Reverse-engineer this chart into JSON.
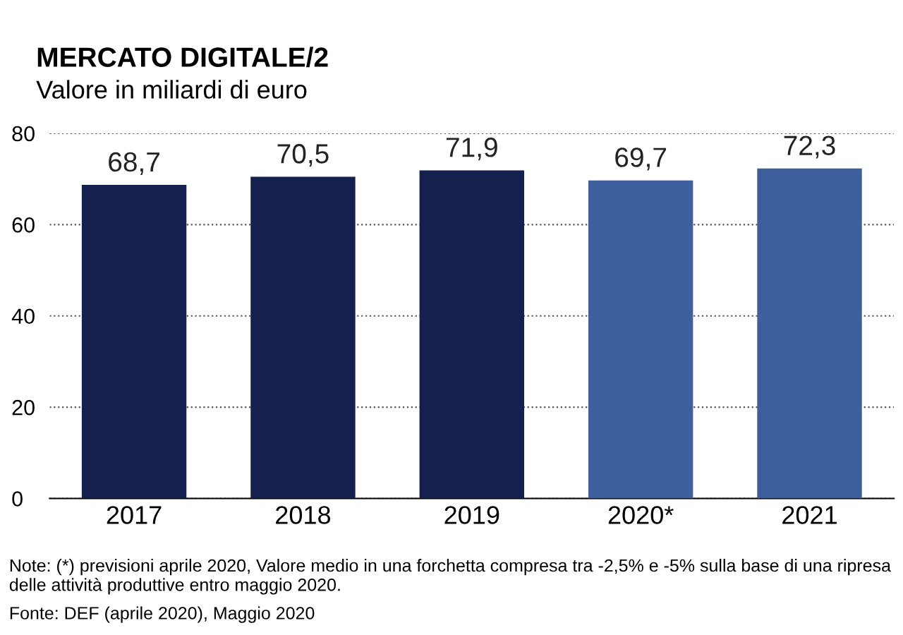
{
  "chart_data": {
    "type": "bar",
    "title": "MERCATO DIGITALE/2",
    "subtitle": "Valore in miliardi di euro",
    "categories": [
      "2017",
      "2018",
      "2019",
      "2020*",
      "2021"
    ],
    "values": [
      68.7,
      70.5,
      71.9,
      69.7,
      72.3
    ],
    "value_labels": [
      "68,7",
      "70,5",
      "71,9",
      "69,7",
      "72,3"
    ],
    "colors": [
      "#14204e",
      "#14204e",
      "#14204e",
      "#3d5f9c",
      "#3d5f9c"
    ],
    "ylim": [
      0,
      80
    ],
    "yticks": [
      0,
      20,
      40,
      60,
      80
    ],
    "grid": "y",
    "annotations": [
      "Note: (*) previsioni aprile 2020, Valore medio in una forchetta compresa tra -2,5% e -5% sulla base di una ripresa delle attività produttive entro maggio 2020.",
      "Fonte: DEF (aprile 2020), Maggio 2020"
    ]
  }
}
